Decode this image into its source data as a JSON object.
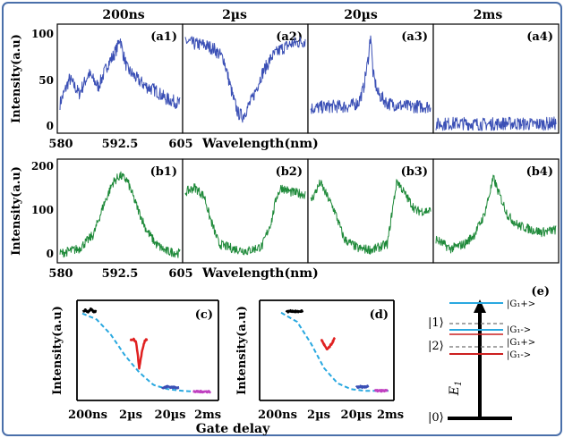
{
  "colors": {
    "frame": "#4a6faa",
    "row_a": "#3a4fb5",
    "row_b": "#1f8a3a",
    "fit": "#29a8e0",
    "black": "#000000",
    "red": "#e02020",
    "blue": "#3a4fb5",
    "magenta": "#c040c0",
    "level_cyan": "#29a8e0",
    "level_red": "#cc2020",
    "level_gray": "#888888"
  },
  "chart_data": [
    {
      "id": "row_a",
      "type": "line",
      "column_titles": [
        "200ns",
        "2µs",
        "20µs",
        "2ms"
      ],
      "panel_labels": [
        "(a1)",
        "(a2)",
        "(a3)",
        "(a4)"
      ],
      "ylabel": "Intensity(a.u)",
      "xlabel": "Wavelength(nm)",
      "x_ticks": [
        "580",
        "592.5",
        "605"
      ],
      "y_ticks": [
        "0",
        "50",
        "100"
      ],
      "xlim": [
        580,
        605
      ],
      "ylim": [
        -5,
        105
      ],
      "series": [
        {
          "x": [
            580,
            582,
            584,
            586,
            588,
            590,
            591,
            592,
            592.5,
            593,
            594,
            596,
            598,
            600,
            602,
            605
          ],
          "y": [
            25,
            50,
            35,
            55,
            42,
            65,
            72,
            82,
            92,
            78,
            60,
            50,
            42,
            38,
            30,
            25
          ]
        },
        {
          "x": [
            580,
            582,
            584,
            586,
            588,
            589,
            590,
            591,
            592,
            594,
            596,
            598,
            600,
            602,
            605
          ],
          "y": [
            88,
            85,
            84,
            80,
            70,
            50,
            30,
            15,
            12,
            30,
            55,
            72,
            80,
            85,
            88
          ]
        },
        {
          "x": [
            580,
            584,
            588,
            590,
            591,
            592,
            592.5,
            593,
            594,
            596,
            600,
            605
          ],
          "y": [
            20,
            22,
            22,
            26,
            40,
            70,
            96,
            55,
            35,
            25,
            22,
            22
          ]
        },
        {
          "x": [
            580,
            585,
            590,
            595,
            600,
            605
          ],
          "y": [
            4,
            5,
            4,
            5,
            4,
            5
          ]
        }
      ]
    },
    {
      "id": "row_b",
      "type": "line",
      "panel_labels": [
        "(b1)",
        "(b2)",
        "(b3)",
        "(b4)"
      ],
      "ylabel": "Intensity(a.u)",
      "xlabel": "Wavelength(nm)",
      "x_ticks": [
        "580",
        "592.5",
        "605"
      ],
      "y_ticks": [
        "0",
        "100",
        "200"
      ],
      "xlim": [
        580,
        605
      ],
      "ylim": [
        -10,
        210
      ],
      "series": [
        {
          "x": [
            580,
            584,
            587,
            589,
            591,
            592.5,
            594,
            596,
            598,
            600,
            602,
            605
          ],
          "y": [
            10,
            20,
            50,
            110,
            160,
            175,
            165,
            110,
            60,
            30,
            15,
            10
          ]
        },
        {
          "x": [
            580,
            582,
            584,
            585,
            587,
            590,
            593,
            596,
            598,
            599,
            600,
            602,
            605
          ],
          "y": [
            140,
            150,
            130,
            90,
            30,
            20,
            15,
            25,
            80,
            130,
            150,
            140,
            135
          ]
        },
        {
          "x": [
            580,
            582,
            583,
            585,
            587,
            590,
            593,
            596,
            597,
            598,
            600,
            602,
            605
          ],
          "y": [
            120,
            160,
            140,
            100,
            40,
            20,
            18,
            30,
            100,
            165,
            130,
            100,
            100
          ]
        },
        {
          "x": [
            580,
            583,
            586,
            588,
            590,
            591,
            592,
            593,
            595,
            597,
            600,
            602,
            605
          ],
          "y": [
            40,
            20,
            30,
            50,
            90,
            130,
            170,
            140,
            90,
            70,
            60,
            55,
            60
          ]
        }
      ]
    },
    {
      "id": "panel_c",
      "type": "line",
      "panel_label": "(c)",
      "ylabel": "Intensity(a.u)",
      "xlabel": "Gate delay",
      "x_ticks": [
        "200ns",
        "2µs",
        "20µs",
        "2ms"
      ],
      "segments": [
        {
          "color": "black",
          "x": [
            0.02,
            0.1,
            0.2,
            0.3,
            0.4,
            0.48
          ],
          "y": [
            0.97,
            0.99,
            0.97,
            1.0,
            0.97,
            0.98
          ]
        },
        {
          "color": "red",
          "x": [
            1.7,
            1.8,
            1.9,
            2.0,
            2.1,
            2.2,
            2.3
          ],
          "y": [
            0.63,
            0.65,
            0.6,
            0.3,
            0.5,
            0.63,
            0.65
          ]
        },
        {
          "color": "blue",
          "x": [
            2.8,
            3.0,
            3.2,
            3.4
          ],
          "y": [
            0.06,
            0.08,
            0.07,
            0.07
          ]
        },
        {
          "color": "magenta",
          "x": [
            3.9,
            4.1,
            4.3,
            4.5
          ],
          "y": [
            0.02,
            0.02,
            0.02,
            0.02
          ]
        }
      ],
      "fit": {
        "x": [
          0,
          0.5,
          1.0,
          1.5,
          2.0,
          2.5,
          3.0,
          3.5,
          4.0,
          4.5
        ],
        "y": [
          0.95,
          0.88,
          0.7,
          0.45,
          0.25,
          0.1,
          0.05,
          0.03,
          0.02,
          0.02
        ]
      }
    },
    {
      "id": "panel_d",
      "type": "line",
      "panel_label": "(d)",
      "ylabel": "Intensity(a.u)",
      "xlabel": "Gate delay",
      "x_ticks": [
        "200ns",
        "2µs",
        "20µs",
        "2ms"
      ],
      "segments": [
        {
          "color": "black",
          "x": [
            0.8,
            1.0,
            1.2,
            1.4
          ],
          "y": [
            0.97,
            0.98,
            0.97,
            0.98
          ]
        },
        {
          "color": "red",
          "x": [
            2.1,
            2.2,
            2.3,
            2.4,
            2.5,
            2.6
          ],
          "y": [
            0.64,
            0.58,
            0.52,
            0.55,
            0.6,
            0.66
          ]
        },
        {
          "color": "blue",
          "x": [
            3.4,
            3.55,
            3.7,
            3.85
          ],
          "y": [
            0.07,
            0.08,
            0.07,
            0.09
          ]
        },
        {
          "color": "magenta",
          "x": [
            4.1,
            4.25,
            4.4,
            4.55
          ],
          "y": [
            0.03,
            0.03,
            0.03,
            0.03
          ]
        }
      ],
      "fit": {
        "x": [
          0.6,
          1.2,
          1.7,
          2.2,
          2.7,
          3.2,
          3.7,
          4.6
        ],
        "y": [
          0.96,
          0.85,
          0.6,
          0.3,
          0.12,
          0.05,
          0.03,
          0.03
        ]
      }
    }
  ],
  "panel_e": {
    "label": "(e)",
    "axis_label": "E",
    "axis_subscript": "1",
    "kets": [
      "|1⟩",
      "|2⟩",
      "|0⟩"
    ],
    "levels": [
      {
        "label": "|G₁+>",
        "color": "level_cyan",
        "dashed": false
      },
      {
        "label": "|G₁->",
        "color": "level_gray",
        "dashed": true
      },
      {
        "label": "|G₁+>",
        "color": "level_cyan",
        "dashed": false
      },
      {
        "label": "|G₁->",
        "color": "level_red",
        "dashed": false
      }
    ],
    "extra_lines": [
      "level_gray_dashed"
    ]
  }
}
